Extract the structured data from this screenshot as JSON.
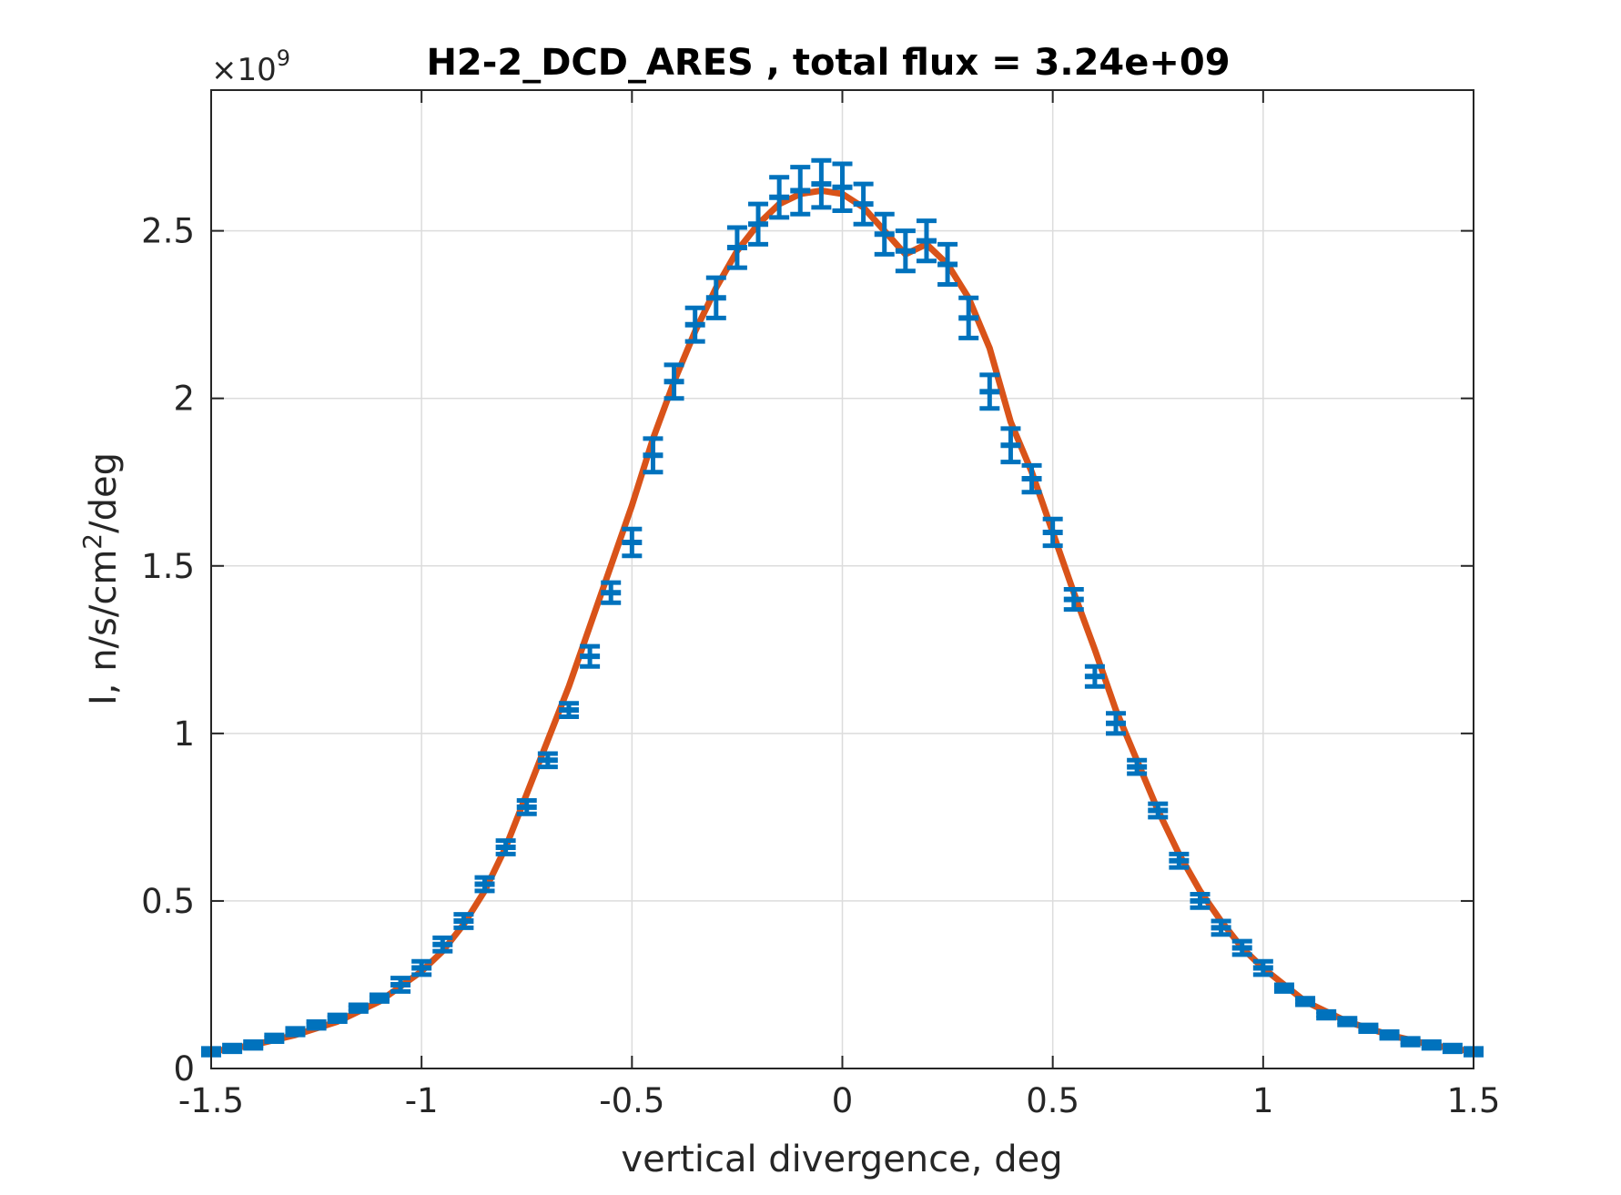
{
  "chart_data": {
    "type": "line",
    "title": "H2-2_DCD_ARES , total flux =  3.24e+09",
    "xlabel": "vertical divergence, deg",
    "ylabel_base": "I, n/s/cm",
    "ylabel_sup": "2",
    "ylabel_tail": "/deg",
    "y_exponent_prefix": "×10",
    "y_exponent_power": "9",
    "xlim": [
      -1.5,
      1.5
    ],
    "ylim": [
      0,
      2.92
    ],
    "xticks": [
      -1.5,
      -1,
      -0.5,
      0,
      0.5,
      1,
      1.5
    ],
    "xtick_labels": [
      "-1.5",
      "-1",
      "-0.5",
      "0",
      "0.5",
      "1",
      "1.5"
    ],
    "yticks": [
      0,
      0.5,
      1,
      1.5,
      2,
      2.5
    ],
    "ytick_labels": [
      "0",
      "0.5",
      "1",
      "1.5",
      "2",
      "2.5"
    ],
    "grid": true,
    "colors": {
      "fit_line": "#D95319",
      "data_points": "#0072BD",
      "grid": "#dcdcdc",
      "axes": "#262626"
    },
    "fit_curve": {
      "x": [
        -1.5,
        -1.4,
        -1.3,
        -1.2,
        -1.1,
        -1.0,
        -0.95,
        -0.9,
        -0.85,
        -0.8,
        -0.75,
        -0.7,
        -0.65,
        -0.6,
        -0.55,
        -0.5,
        -0.45,
        -0.4,
        -0.35,
        -0.3,
        -0.25,
        -0.2,
        -0.15,
        -0.1,
        -0.05,
        0,
        0.05,
        0.1,
        0.15,
        0.2,
        0.25,
        0.3,
        0.35,
        0.4,
        0.45,
        0.5,
        0.55,
        0.6,
        0.65,
        0.7,
        0.75,
        0.8,
        0.85,
        0.9,
        0.95,
        1.0,
        1.1,
        1.2,
        1.3,
        1.4,
        1.5
      ],
      "y": [
        0.05,
        0.07,
        0.1,
        0.14,
        0.2,
        0.29,
        0.35,
        0.43,
        0.53,
        0.66,
        0.82,
        0.98,
        1.14,
        1.32,
        1.5,
        1.68,
        1.88,
        2.05,
        2.2,
        2.33,
        2.44,
        2.52,
        2.58,
        2.61,
        2.62,
        2.61,
        2.57,
        2.5,
        2.43,
        2.46,
        2.4,
        2.3,
        2.15,
        1.93,
        1.78,
        1.6,
        1.42,
        1.25,
        1.07,
        0.92,
        0.77,
        0.64,
        0.53,
        0.44,
        0.36,
        0.3,
        0.2,
        0.14,
        0.1,
        0.07,
        0.05
      ]
    },
    "series": [
      {
        "x": [
          -1.5,
          -1.45,
          -1.4,
          -1.35,
          -1.3,
          -1.25,
          -1.2,
          -1.15,
          -1.1,
          -1.05,
          -1.0,
          -0.95,
          -0.9,
          -0.85,
          -0.8,
          -0.75,
          -0.7,
          -0.65,
          -0.6,
          -0.55,
          -0.5,
          -0.45,
          -0.4,
          -0.35,
          -0.3,
          -0.25,
          -0.2,
          -0.15,
          -0.1,
          -0.05,
          0,
          0.05,
          0.1,
          0.15,
          0.2,
          0.25,
          0.3,
          0.35,
          0.4,
          0.45,
          0.5,
          0.55,
          0.6,
          0.65,
          0.7,
          0.75,
          0.8,
          0.85,
          0.9,
          0.95,
          1.0,
          1.05,
          1.1,
          1.15,
          1.2,
          1.25,
          1.3,
          1.35,
          1.4,
          1.45,
          1.5
        ],
        "y": [
          0.05,
          0.06,
          0.07,
          0.09,
          0.11,
          0.13,
          0.15,
          0.18,
          0.21,
          0.25,
          0.3,
          0.37,
          0.44,
          0.55,
          0.66,
          0.78,
          0.92,
          1.07,
          1.23,
          1.42,
          1.57,
          1.83,
          2.05,
          2.22,
          2.3,
          2.45,
          2.52,
          2.6,
          2.62,
          2.64,
          2.63,
          2.58,
          2.49,
          2.44,
          2.47,
          2.4,
          2.24,
          2.02,
          1.86,
          1.76,
          1.6,
          1.4,
          1.17,
          1.03,
          0.9,
          0.77,
          0.62,
          0.5,
          0.42,
          0.36,
          0.3,
          0.24,
          0.2,
          0.16,
          0.14,
          0.12,
          0.1,
          0.08,
          0.07,
          0.06,
          0.05
        ],
        "err": [
          0.01,
          0.01,
          0.01,
          0.01,
          0.01,
          0.01,
          0.01,
          0.01,
          0.01,
          0.02,
          0.02,
          0.02,
          0.02,
          0.02,
          0.02,
          0.02,
          0.02,
          0.02,
          0.03,
          0.03,
          0.04,
          0.05,
          0.05,
          0.05,
          0.06,
          0.06,
          0.06,
          0.06,
          0.07,
          0.07,
          0.07,
          0.06,
          0.06,
          0.06,
          0.06,
          0.06,
          0.06,
          0.05,
          0.05,
          0.04,
          0.04,
          0.03,
          0.03,
          0.03,
          0.02,
          0.02,
          0.02,
          0.02,
          0.02,
          0.02,
          0.02,
          0.01,
          0.01,
          0.01,
          0.01,
          0.01,
          0.01,
          0.01,
          0.01,
          0.01,
          0.01
        ]
      }
    ]
  }
}
